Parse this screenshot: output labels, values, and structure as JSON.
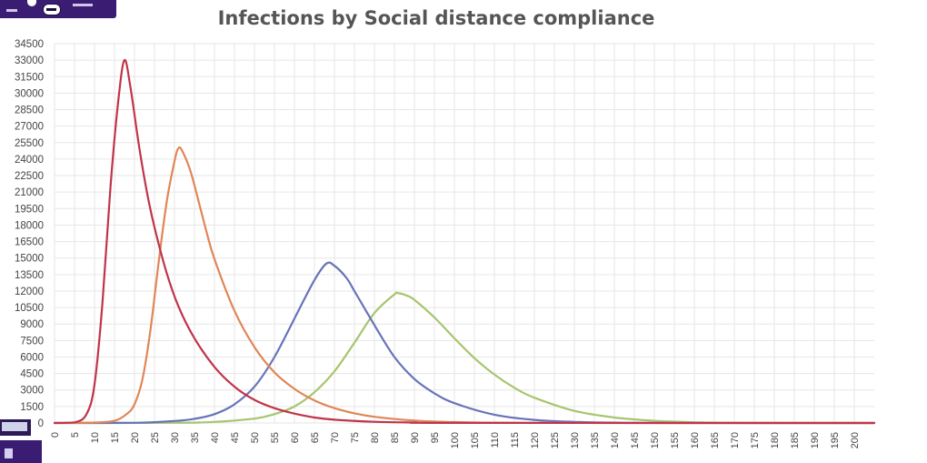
{
  "chart_data": {
    "type": "line",
    "title": "Infections by Social distance compliance",
    "xlabel": "",
    "ylabel": "",
    "xlim": [
      0,
      205
    ],
    "ylim": [
      0,
      34500
    ],
    "x_ticks": [
      "0",
      "5",
      "10",
      "15",
      "20",
      "25",
      "30",
      "35",
      "40",
      "45",
      "50",
      "55",
      "60",
      "65",
      "70",
      "75",
      "80",
      "85",
      "90",
      "95",
      "100",
      "105",
      "110",
      "115",
      "120",
      "125",
      "130",
      "135",
      "140",
      "145",
      "150",
      "155",
      "160",
      "165",
      "170",
      "175",
      "180",
      "185",
      "190",
      "195",
      "200"
    ],
    "y_ticks": [
      "0",
      "1500",
      "3000",
      "4500",
      "6000",
      "7500",
      "9000",
      "10500",
      "12000",
      "13500",
      "15000",
      "16500",
      "18000",
      "19500",
      "21000",
      "22500",
      "24000",
      "25500",
      "27000",
      "28500",
      "30000",
      "31500",
      "33000",
      "34500"
    ],
    "grid": true,
    "legend": "none",
    "series": [
      {
        "color": "#c0344a",
        "peak": {
          "x": 17.5,
          "y": 33000
        },
        "points": [
          [
            0,
            0
          ],
          [
            5,
            60
          ],
          [
            8,
            800
          ],
          [
            10,
            3500
          ],
          [
            12,
            11000
          ],
          [
            14,
            21500
          ],
          [
            16,
            29500
          ],
          [
            17.5,
            33000
          ],
          [
            19,
            30500
          ],
          [
            21,
            25500
          ],
          [
            23,
            21200
          ],
          [
            25,
            17800
          ],
          [
            28,
            13700
          ],
          [
            31,
            10600
          ],
          [
            35,
            7700
          ],
          [
            40,
            5100
          ],
          [
            45,
            3300
          ],
          [
            50,
            2100
          ],
          [
            55,
            1350
          ],
          [
            60,
            850
          ],
          [
            65,
            500
          ],
          [
            70,
            300
          ],
          [
            80,
            110
          ],
          [
            90,
            40
          ],
          [
            100,
            10
          ],
          [
            205,
            0
          ]
        ]
      },
      {
        "color": "#e08657",
        "peak": {
          "x": 31,
          "y": 25000
        },
        "points": [
          [
            0,
            0
          ],
          [
            10,
            40
          ],
          [
            15,
            200
          ],
          [
            18,
            800
          ],
          [
            20,
            1700
          ],
          [
            22,
            4000
          ],
          [
            24,
            8500
          ],
          [
            26,
            14500
          ],
          [
            28,
            20000
          ],
          [
            30,
            23800
          ],
          [
            31,
            25000
          ],
          [
            32,
            24700
          ],
          [
            34,
            22900
          ],
          [
            36,
            20200
          ],
          [
            38,
            17400
          ],
          [
            40,
            14900
          ],
          [
            45,
            10200
          ],
          [
            50,
            6900
          ],
          [
            55,
            4600
          ],
          [
            60,
            3100
          ],
          [
            65,
            2050
          ],
          [
            70,
            1350
          ],
          [
            75,
            880
          ],
          [
            80,
            560
          ],
          [
            90,
            220
          ],
          [
            100,
            80
          ],
          [
            120,
            10
          ],
          [
            205,
            0
          ]
        ]
      },
      {
        "color": "#6873b8",
        "peak": {
          "x": 68,
          "y": 14500
        },
        "points": [
          [
            0,
            0
          ],
          [
            20,
            20
          ],
          [
            30,
            180
          ],
          [
            35,
            380
          ],
          [
            40,
            800
          ],
          [
            45,
            1700
          ],
          [
            50,
            3300
          ],
          [
            55,
            6000
          ],
          [
            60,
            9500
          ],
          [
            65,
            13000
          ],
          [
            68,
            14500
          ],
          [
            70,
            14300
          ],
          [
            73,
            13200
          ],
          [
            75,
            12000
          ],
          [
            80,
            8900
          ],
          [
            85,
            6000
          ],
          [
            90,
            4000
          ],
          [
            95,
            2700
          ],
          [
            100,
            1800
          ],
          [
            110,
            750
          ],
          [
            120,
            280
          ],
          [
            130,
            100
          ],
          [
            140,
            30
          ],
          [
            150,
            8
          ],
          [
            205,
            0
          ]
        ]
      },
      {
        "color": "#a7c56f",
        "peak": {
          "x": 86,
          "y": 11800
        },
        "points": [
          [
            0,
            0
          ],
          [
            30,
            20
          ],
          [
            40,
            100
          ],
          [
            50,
            400
          ],
          [
            55,
            800
          ],
          [
            60,
            1500
          ],
          [
            65,
            2800
          ],
          [
            70,
            4700
          ],
          [
            75,
            7300
          ],
          [
            80,
            10000
          ],
          [
            85,
            11700
          ],
          [
            86,
            11800
          ],
          [
            88,
            11600
          ],
          [
            90,
            11200
          ],
          [
            95,
            9600
          ],
          [
            100,
            7700
          ],
          [
            105,
            5900
          ],
          [
            110,
            4400
          ],
          [
            115,
            3200
          ],
          [
            120,
            2300
          ],
          [
            130,
            1100
          ],
          [
            140,
            500
          ],
          [
            150,
            200
          ],
          [
            160,
            70
          ],
          [
            170,
            20
          ],
          [
            205,
            0
          ]
        ]
      }
    ]
  }
}
